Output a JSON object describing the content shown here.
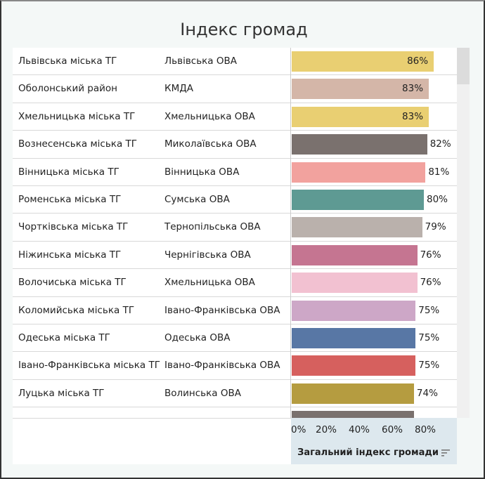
{
  "title": "Індекс громад",
  "chart_data": {
    "type": "bar",
    "orientation": "horizontal",
    "title": "Індекс громад",
    "xlabel": "Загальний індекс громади",
    "xlim": [
      0,
      100
    ],
    "x_ticks": [
      "0%",
      "20%",
      "40%",
      "60%",
      "80%"
    ],
    "rows": [
      {
        "name": "Львівська міська ТГ",
        "region": "Львівська ОВА",
        "value": 86,
        "label": "86%",
        "color": "#e9cf72"
      },
      {
        "name": "Оболонський район",
        "region": "КМДА",
        "value": 83,
        "label": "83%",
        "color": "#d4b6a8"
      },
      {
        "name": "Хмельницька міська ТГ",
        "region": "Хмельницька ОВА",
        "value": 83,
        "label": "83%",
        "color": "#e9cf72"
      },
      {
        "name": "Вознесенська міська ТГ",
        "region": "Миколаївська ОВА",
        "value": 82,
        "label": "82%",
        "color": "#7a716e"
      },
      {
        "name": "Вінницька міська ТГ",
        "region": "Вінницька ОВА",
        "value": 81,
        "label": "81%",
        "color": "#f2a29e"
      },
      {
        "name": "Роменська міська ТГ",
        "region": "Сумська ОВА",
        "value": 80,
        "label": "80%",
        "color": "#5e9a93"
      },
      {
        "name": "Чортківська міська ТГ",
        "region": "Тернопільська ОВА",
        "value": 79,
        "label": "79%",
        "color": "#bab1ac"
      },
      {
        "name": "Ніжинська міська ТГ",
        "region": "Чернігівська ОВА",
        "value": 76,
        "label": "76%",
        "color": "#c57591"
      },
      {
        "name": "Волочиська міська ТГ",
        "region": "Хмельницька ОВА",
        "value": 76,
        "label": "76%",
        "color": "#f2c1d1"
      },
      {
        "name": "Коломийська міська ТГ",
        "region": "Івано-Франківська ОВА",
        "value": 75,
        "label": "75%",
        "color": "#cda7c7"
      },
      {
        "name": "Одеська міська ТГ",
        "region": "Одеська ОВА",
        "value": 75,
        "label": "75%",
        "color": "#5877a5"
      },
      {
        "name": "Івано-Франківська міська ТГ",
        "region": "Івано-Франківська ОВА",
        "value": 75,
        "label": "75%",
        "color": "#d6605e"
      },
      {
        "name": "Луцька міська ТГ",
        "region": "Волинська ОВА",
        "value": 74,
        "label": "74%",
        "color": "#b59c40"
      },
      {
        "value": 74,
        "color": "#7a716e"
      }
    ]
  }
}
